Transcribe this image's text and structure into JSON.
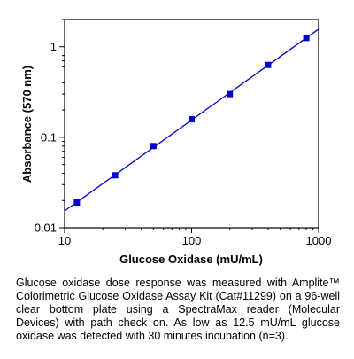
{
  "chart_data": {
    "type": "scatter",
    "title": "",
    "xlabel": "Glucose Oxidase (mU/mL)",
    "ylabel": "Absorbance (570 nm)",
    "x_scale": "log",
    "y_scale": "log",
    "xlim": [
      10,
      1000
    ],
    "ylim": [
      0.01,
      2
    ],
    "x_ticks": [
      10,
      100,
      1000
    ],
    "x_tick_labels": [
      "10",
      "100",
      "1000"
    ],
    "y_ticks": [
      0.01,
      0.1,
      1
    ],
    "y_tick_labels": [
      "0.01",
      "0.1",
      "1"
    ],
    "grid": false,
    "legend": "none",
    "series": [
      {
        "x": [
          12.5,
          25,
          50,
          100,
          200,
          400,
          800
        ],
        "y": [
          0.019,
          0.038,
          0.08,
          0.158,
          0.3,
          0.63,
          1.25
        ],
        "marker": "square",
        "fit": "linear"
      }
    ],
    "colors": {
      "series": "#0000cc",
      "axes": "#000000"
    }
  },
  "caption": "Glucose oxidase dose response was measured with Amplite™ Colorimetric Glucose Oxidase Assay Kit (Cat#11299) on a 96-well clear bottom plate using a SpectraMax reader (Molecular Devices) with path check on. As low as 12.5 mU/mL glucose oxidase was detected with 30 minutes incubation (n=3)."
}
